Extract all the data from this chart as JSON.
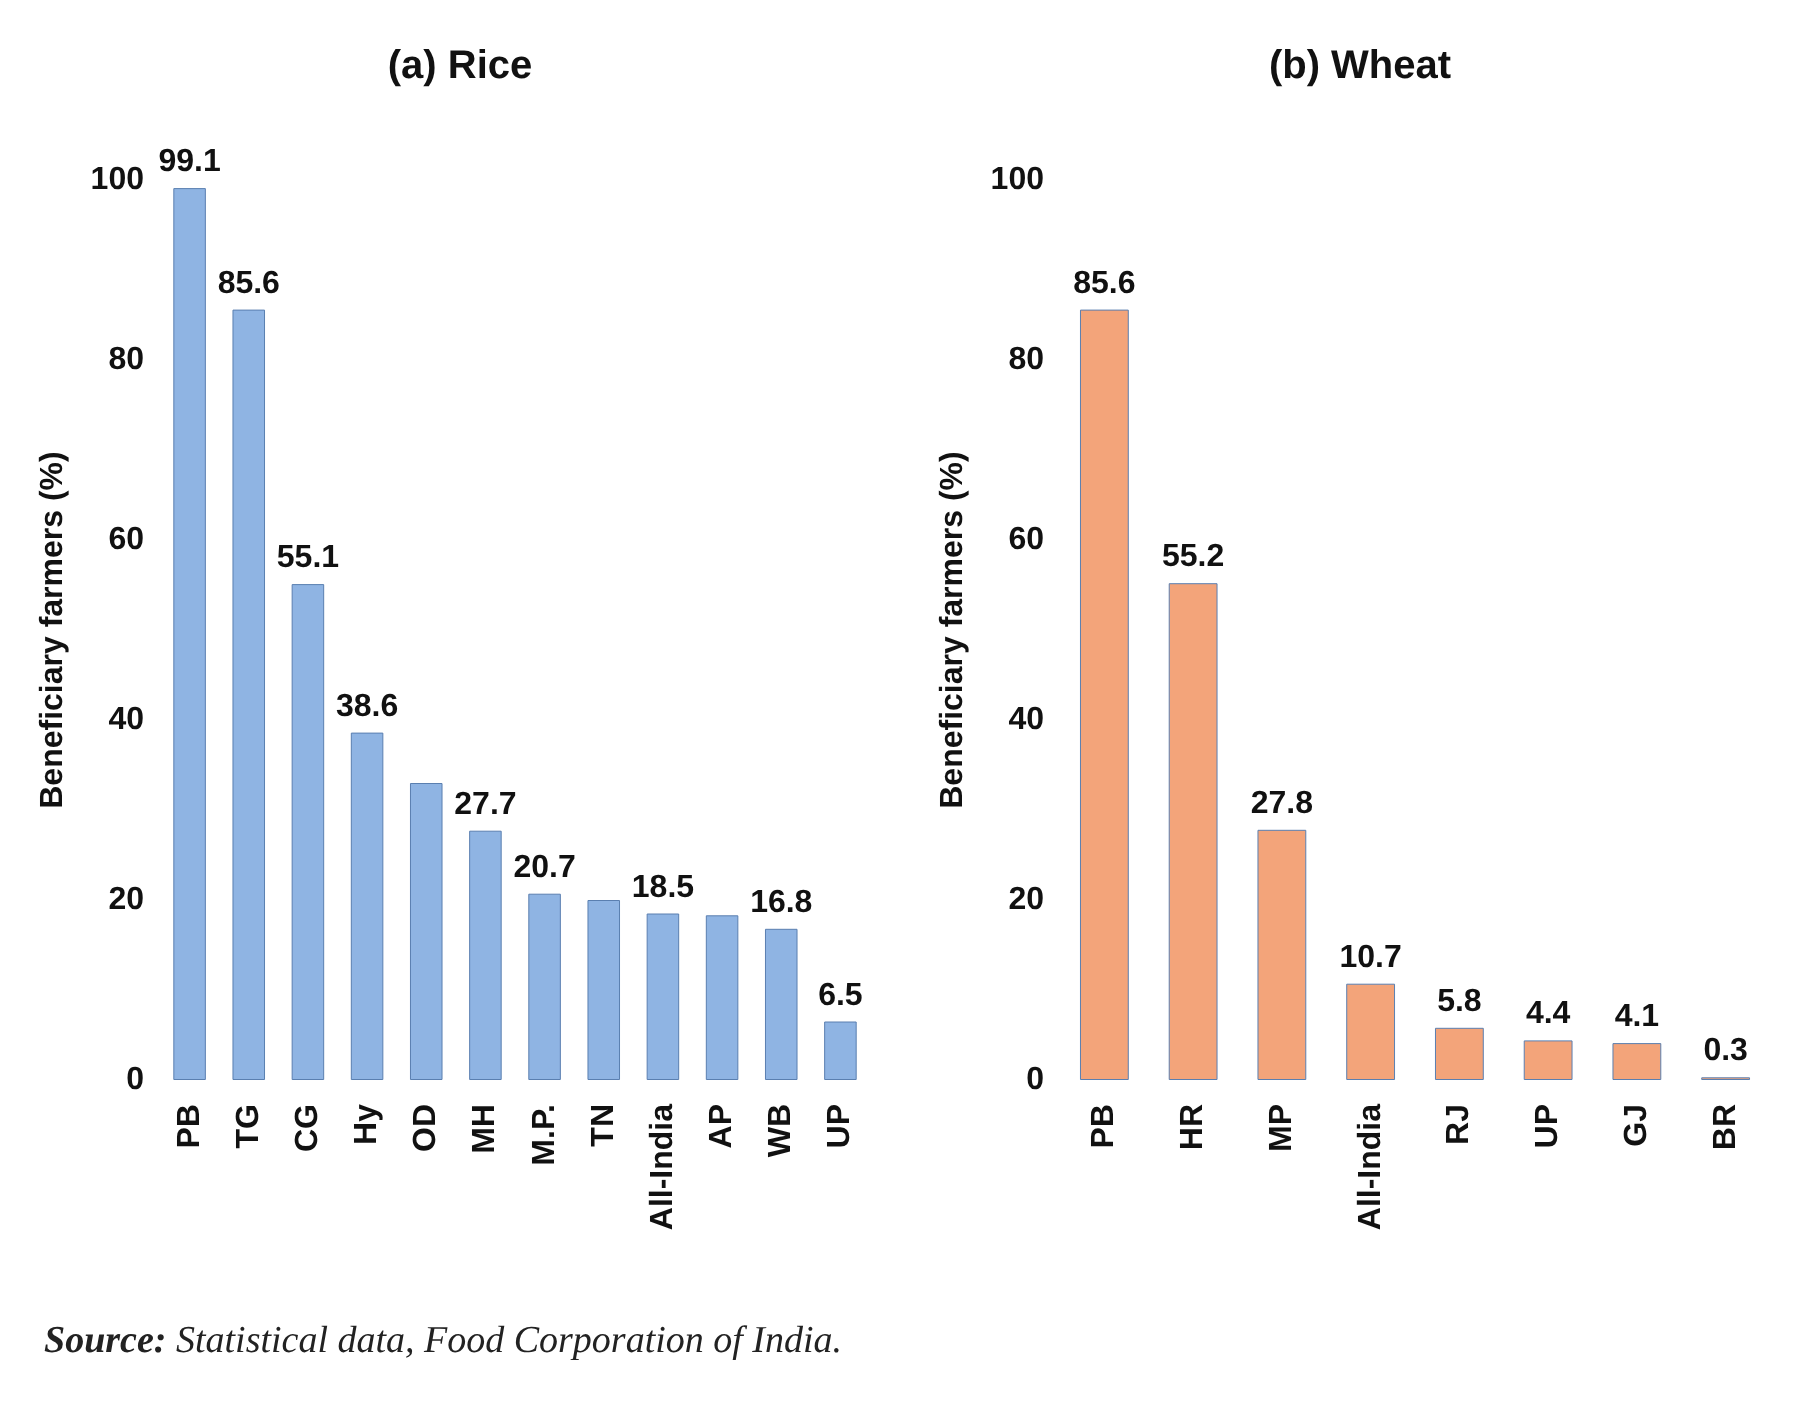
{
  "chart_data": [
    {
      "type": "bar",
      "title": "(a) Rice",
      "ylabel": "Beneficiary farmers (%)",
      "categories": [
        "PB",
        "TG",
        "CG",
        "Hy",
        "OD",
        "MH",
        "M.P.",
        "TN",
        "All-India",
        "AP",
        "WB",
        "UP"
      ],
      "values": [
        99.1,
        85.6,
        55.1,
        38.6,
        33,
        27.7,
        20.7,
        20,
        18.5,
        18.3,
        16.8,
        6.5
      ],
      "value_labels": [
        "99.1",
        "85.6",
        "55.1",
        "38.6",
        null,
        "27.7",
        "20.7",
        null,
        "18.5",
        null,
        "16.8",
        "6.5"
      ],
      "color": "#8fb4e3",
      "ylim": [
        0,
        100
      ],
      "yticks": [
        0,
        20,
        40,
        60,
        80,
        100
      ],
      "annotations": [
        "Source: Statistical data, Food Corporation of India."
      ]
    },
    {
      "type": "bar",
      "title": "(b) Wheat",
      "ylabel": "Beneficiary farmers (%)",
      "categories": [
        "PB",
        "HR",
        "MP",
        "All-India",
        "RJ",
        "UP",
        "GJ",
        "BR"
      ],
      "values": [
        85.6,
        55.2,
        27.8,
        10.7,
        5.8,
        4.4,
        4.1,
        0.3
      ],
      "data_labels": true,
      "color": "#f3a47a",
      "ylim": [
        0,
        100
      ],
      "yticks": [
        0,
        20,
        40,
        60,
        80,
        100
      ]
    }
  ]
}
